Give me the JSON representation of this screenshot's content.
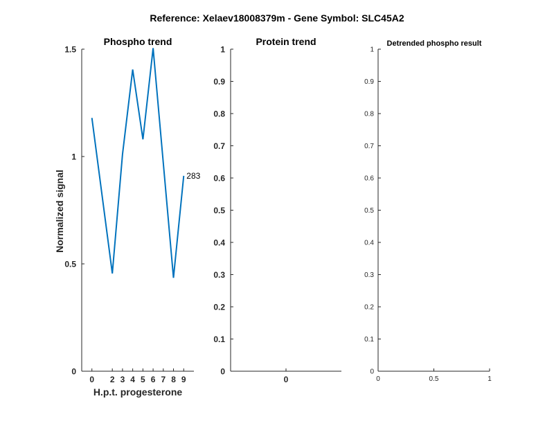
{
  "figure": {
    "suptitle": "Reference:  Xelaev18008379m - Gene Symbol:  SLC45A2"
  },
  "colors": {
    "line": "#0072bd",
    "axis": "#262626",
    "background": "#ffffff"
  },
  "chart_data": [
    {
      "type": "line",
      "title": "Phospho trend",
      "xlabel": "H.p.t. progesterone",
      "ylabel": "Normalized signal",
      "xlim": [
        -1,
        10
      ],
      "ylim": [
        0,
        1.5
      ],
      "x_ticks": [
        0,
        2,
        3,
        4,
        5,
        6,
        7,
        8,
        9
      ],
      "y_ticks": [
        0,
        0.5,
        1,
        1.5
      ],
      "y_tick_labels": [
        "0",
        "0.5",
        "1",
        "1.5"
      ],
      "grid": false,
      "series": [
        {
          "x": [
            0,
            2,
            3,
            4,
            5,
            6,
            7,
            8,
            9
          ],
          "values": [
            1.18,
            0.455,
            1.01,
            1.405,
            1.08,
            1.505,
            0.97,
            0.435,
            0.91
          ],
          "end_label": "283"
        }
      ]
    },
    {
      "type": "line",
      "title": "Protein trend",
      "xlim": [
        -1,
        1
      ],
      "ylim": [
        0,
        1
      ],
      "x_ticks": [
        0
      ],
      "y_ticks": [
        0,
        0.1,
        0.2,
        0.3,
        0.4,
        0.5,
        0.6,
        0.7,
        0.8,
        0.9,
        1
      ],
      "y_tick_labels": [
        "0",
        "0.1",
        "0.2",
        "0.3",
        "0.4",
        "0.5",
        "0.6",
        "0.7",
        "0.8",
        "0.9",
        "1"
      ],
      "grid": false,
      "series": []
    },
    {
      "type": "line",
      "title": "Detrended phospho result",
      "xlim": [
        0,
        1
      ],
      "ylim": [
        0,
        1
      ],
      "x_ticks": [
        0,
        0.5,
        1
      ],
      "x_tick_labels": [
        "0",
        "0.5",
        "1"
      ],
      "y_ticks": [
        0,
        0.1,
        0.2,
        0.3,
        0.4,
        0.5,
        0.6,
        0.7,
        0.8,
        0.9,
        1
      ],
      "y_tick_labels": [
        "0",
        "0.1",
        "0.2",
        "0.3",
        "0.4",
        "0.5",
        "0.6",
        "0.7",
        "0.8",
        "0.9",
        "1"
      ],
      "grid": false,
      "series": []
    }
  ]
}
